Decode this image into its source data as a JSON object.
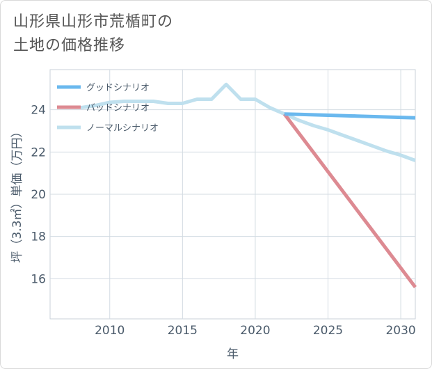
{
  "title_lines": [
    "山形県山形市荒楯町の",
    "土地の価格推移"
  ],
  "chart_data": {
    "type": "line",
    "xlabel": "年",
    "ylabel": "坪（3.3㎡）単価（万円）",
    "xlim": [
      2005.9,
      2031
    ],
    "ylim": [
      14.1,
      25.9
    ],
    "xticks": [
      2010,
      2015,
      2020,
      2025,
      2030
    ],
    "yticks": [
      16,
      18,
      20,
      22,
      24
    ],
    "grid": true,
    "legend_position": "top-left",
    "series": [
      {
        "name": "グッドシナリオ",
        "color": "#6ab8ee",
        "x": [
          2022,
          2023,
          2024,
          2025,
          2026,
          2027,
          2028,
          2029,
          2030,
          2031
        ],
        "y": [
          23.8,
          23.78,
          23.76,
          23.74,
          23.72,
          23.7,
          23.68,
          23.66,
          23.64,
          23.62
        ]
      },
      {
        "name": "バッドシナリオ",
        "color": "#dd8a92",
        "x": [
          2022,
          2031
        ],
        "y": [
          23.8,
          15.6
        ]
      },
      {
        "name": "ノーマルシナリオ",
        "color": "#bfe0ee",
        "x": [
          2008,
          2009,
          2010,
          2011,
          2012,
          2013,
          2014,
          2015,
          2016,
          2017,
          2018,
          2019,
          2020,
          2021,
          2022,
          2023,
          2024,
          2025,
          2026,
          2027,
          2028,
          2029,
          2030,
          2031
        ],
        "y": [
          24.1,
          24.2,
          24.35,
          24.4,
          24.4,
          24.4,
          24.3,
          24.3,
          24.5,
          24.5,
          25.2,
          24.5,
          24.5,
          24.1,
          23.8,
          23.5,
          23.25,
          23.05,
          22.8,
          22.55,
          22.3,
          22.05,
          21.85,
          21.6
        ]
      }
    ]
  }
}
